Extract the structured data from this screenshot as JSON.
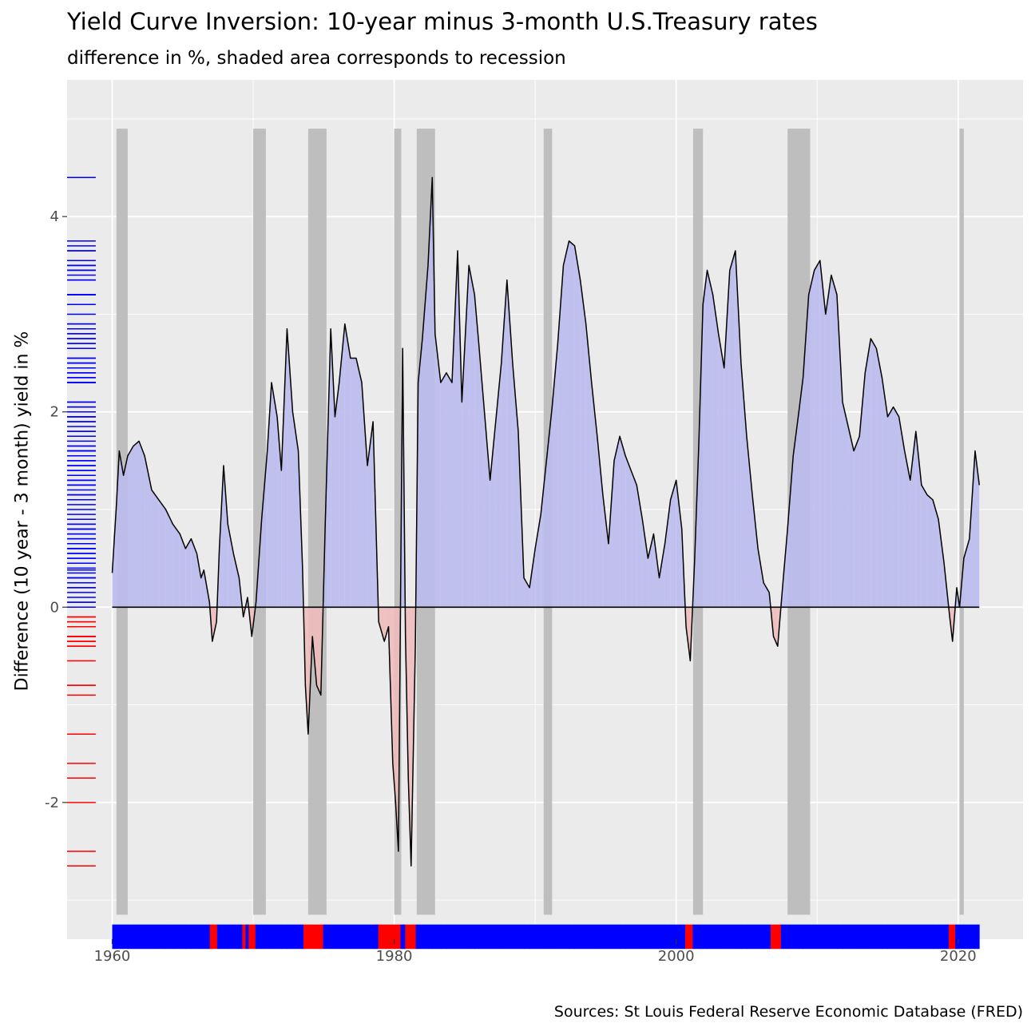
{
  "chart_data": {
    "type": "area",
    "title": "Yield Curve Inversion: 10-year minus 3-month U.S.Treasury rates",
    "subtitle": "difference in %, shaded area corresponds to recession",
    "caption": "Sources: St Louis Federal Reserve Economic Database (FRED)",
    "ylabel": "Difference (10 year - 3 month) yield in %",
    "xlabel": "",
    "x_ticks": [
      1960,
      1980,
      2000,
      2020
    ],
    "y_ticks": [
      -2,
      0,
      2,
      4
    ],
    "xlim": [
      1956.8,
      2024.6
    ],
    "ylim": [
      -3.4,
      5.4
    ],
    "grid": true,
    "colors": {
      "panel": "#ebebeb",
      "grid": "#ffffff",
      "positive_fill": "#bcbcee",
      "negative_fill": "#efbcbc",
      "recession": "#bebebe",
      "positive_strip": "#0000ff",
      "negative_strip": "#ff0000",
      "line": "#000000"
    },
    "recessions": [
      [
        1960.3,
        1961.1
      ],
      [
        1970.0,
        1970.9
      ],
      [
        1973.9,
        1975.2
      ],
      [
        1980.0,
        1980.5
      ],
      [
        1981.6,
        1982.9
      ],
      [
        1990.6,
        1991.2
      ],
      [
        2001.2,
        2001.9
      ],
      [
        2007.9,
        2009.5
      ],
      [
        2020.1,
        2020.4
      ]
    ],
    "series": [
      {
        "values": [
          [
            1960.0,
            0.35
          ],
          [
            1960.3,
            1.05
          ],
          [
            1960.5,
            1.6
          ],
          [
            1960.8,
            1.35
          ],
          [
            1961.1,
            1.55
          ],
          [
            1961.5,
            1.65
          ],
          [
            1961.9,
            1.7
          ],
          [
            1962.3,
            1.55
          ],
          [
            1962.8,
            1.2
          ],
          [
            1963.3,
            1.1
          ],
          [
            1963.8,
            1.0
          ],
          [
            1964.3,
            0.85
          ],
          [
            1964.8,
            0.75
          ],
          [
            1965.2,
            0.6
          ],
          [
            1965.6,
            0.7
          ],
          [
            1966.0,
            0.55
          ],
          [
            1966.3,
            0.3
          ],
          [
            1966.5,
            0.38
          ],
          [
            1966.9,
            0.05
          ],
          [
            1967.1,
            -0.35
          ],
          [
            1967.4,
            -0.15
          ],
          [
            1967.6,
            0.6
          ],
          [
            1967.9,
            1.45
          ],
          [
            1968.2,
            0.85
          ],
          [
            1968.6,
            0.55
          ],
          [
            1969.0,
            0.3
          ],
          [
            1969.3,
            -0.1
          ],
          [
            1969.6,
            0.1
          ],
          [
            1969.9,
            -0.3
          ],
          [
            1970.2,
            0.05
          ],
          [
            1970.6,
            0.9
          ],
          [
            1971.0,
            1.6
          ],
          [
            1971.3,
            2.3
          ],
          [
            1971.7,
            1.95
          ],
          [
            1972.0,
            1.4
          ],
          [
            1972.4,
            2.85
          ],
          [
            1972.8,
            2.0
          ],
          [
            1973.2,
            1.6
          ],
          [
            1973.5,
            0.4
          ],
          [
            1973.7,
            -0.8
          ],
          [
            1973.9,
            -1.3
          ],
          [
            1974.2,
            -0.3
          ],
          [
            1974.5,
            -0.8
          ],
          [
            1974.8,
            -0.9
          ],
          [
            1975.1,
            0.8
          ],
          [
            1975.5,
            2.85
          ],
          [
            1975.8,
            1.95
          ],
          [
            1976.1,
            2.3
          ],
          [
            1976.5,
            2.9
          ],
          [
            1976.9,
            2.55
          ],
          [
            1977.3,
            2.55
          ],
          [
            1977.7,
            2.3
          ],
          [
            1978.1,
            1.45
          ],
          [
            1978.5,
            1.9
          ],
          [
            1978.9,
            -0.15
          ],
          [
            1979.3,
            -0.35
          ],
          [
            1979.6,
            -0.2
          ],
          [
            1979.9,
            -1.6
          ],
          [
            1980.1,
            -2.0
          ],
          [
            1980.3,
            -2.5
          ],
          [
            1980.6,
            2.65
          ],
          [
            1980.8,
            -0.3
          ],
          [
            1981.0,
            -1.75
          ],
          [
            1981.2,
            -2.65
          ],
          [
            1981.5,
            -0.4
          ],
          [
            1981.7,
            2.3
          ],
          [
            1982.0,
            2.75
          ],
          [
            1982.4,
            3.5
          ],
          [
            1982.7,
            4.4
          ],
          [
            1982.9,
            2.8
          ],
          [
            1983.3,
            2.3
          ],
          [
            1983.7,
            2.4
          ],
          [
            1984.1,
            2.3
          ],
          [
            1984.5,
            3.65
          ],
          [
            1984.8,
            2.1
          ],
          [
            1985.3,
            3.5
          ],
          [
            1985.7,
            3.2
          ],
          [
            1986.0,
            2.7
          ],
          [
            1986.4,
            2.0
          ],
          [
            1986.8,
            1.3
          ],
          [
            1987.2,
            1.9
          ],
          [
            1987.6,
            2.5
          ],
          [
            1988.0,
            3.35
          ],
          [
            1988.4,
            2.5
          ],
          [
            1988.8,
            1.8
          ],
          [
            1989.2,
            0.3
          ],
          [
            1989.6,
            0.2
          ],
          [
            1990.0,
            0.6
          ],
          [
            1990.4,
            0.95
          ],
          [
            1990.8,
            1.5
          ],
          [
            1991.2,
            2.05
          ],
          [
            1991.6,
            2.7
          ],
          [
            1992.0,
            3.5
          ],
          [
            1992.4,
            3.75
          ],
          [
            1992.8,
            3.7
          ],
          [
            1993.2,
            3.35
          ],
          [
            1993.6,
            2.9
          ],
          [
            1994.0,
            2.3
          ],
          [
            1994.4,
            1.75
          ],
          [
            1994.8,
            1.15
          ],
          [
            1995.2,
            0.65
          ],
          [
            1995.6,
            1.5
          ],
          [
            1996.0,
            1.75
          ],
          [
            1996.4,
            1.55
          ],
          [
            1996.8,
            1.4
          ],
          [
            1997.2,
            1.25
          ],
          [
            1997.6,
            0.9
          ],
          [
            1998.0,
            0.5
          ],
          [
            1998.4,
            0.75
          ],
          [
            1998.8,
            0.3
          ],
          [
            1999.2,
            0.65
          ],
          [
            1999.6,
            1.1
          ],
          [
            2000.0,
            1.3
          ],
          [
            2000.4,
            0.8
          ],
          [
            2000.7,
            -0.2
          ],
          [
            2001.0,
            -0.55
          ],
          [
            2001.3,
            0.45
          ],
          [
            2001.6,
            1.65
          ],
          [
            2001.9,
            3.1
          ],
          [
            2002.2,
            3.45
          ],
          [
            2002.6,
            3.2
          ],
          [
            2003.0,
            2.8
          ],
          [
            2003.4,
            2.45
          ],
          [
            2003.8,
            3.45
          ],
          [
            2004.2,
            3.65
          ],
          [
            2004.6,
            2.5
          ],
          [
            2005.0,
            1.75
          ],
          [
            2005.4,
            1.15
          ],
          [
            2005.8,
            0.6
          ],
          [
            2006.2,
            0.25
          ],
          [
            2006.6,
            0.15
          ],
          [
            2006.9,
            -0.3
          ],
          [
            2007.2,
            -0.4
          ],
          [
            2007.6,
            0.3
          ],
          [
            2007.9,
            0.8
          ],
          [
            2008.3,
            1.55
          ],
          [
            2008.7,
            2.0
          ],
          [
            2009.0,
            2.35
          ],
          [
            2009.4,
            3.2
          ],
          [
            2009.8,
            3.45
          ],
          [
            2010.2,
            3.55
          ],
          [
            2010.6,
            3.0
          ],
          [
            2011.0,
            3.4
          ],
          [
            2011.4,
            3.2
          ],
          [
            2011.8,
            2.1
          ],
          [
            2012.2,
            1.85
          ],
          [
            2012.6,
            1.6
          ],
          [
            2013.0,
            1.75
          ],
          [
            2013.4,
            2.4
          ],
          [
            2013.8,
            2.75
          ],
          [
            2014.2,
            2.65
          ],
          [
            2014.6,
            2.35
          ],
          [
            2015.0,
            1.95
          ],
          [
            2015.4,
            2.05
          ],
          [
            2015.8,
            1.95
          ],
          [
            2016.2,
            1.6
          ],
          [
            2016.6,
            1.3
          ],
          [
            2017.0,
            1.8
          ],
          [
            2017.4,
            1.25
          ],
          [
            2017.8,
            1.15
          ],
          [
            2018.2,
            1.1
          ],
          [
            2018.6,
            0.9
          ],
          [
            2019.0,
            0.45
          ],
          [
            2019.4,
            -0.1
          ],
          [
            2019.6,
            -0.35
          ],
          [
            2019.9,
            0.2
          ],
          [
            2020.1,
            0.0
          ],
          [
            2020.4,
            0.5
          ],
          [
            2020.8,
            0.7
          ],
          [
            2021.2,
            1.6
          ],
          [
            2021.5,
            1.25
          ]
        ]
      }
    ]
  }
}
